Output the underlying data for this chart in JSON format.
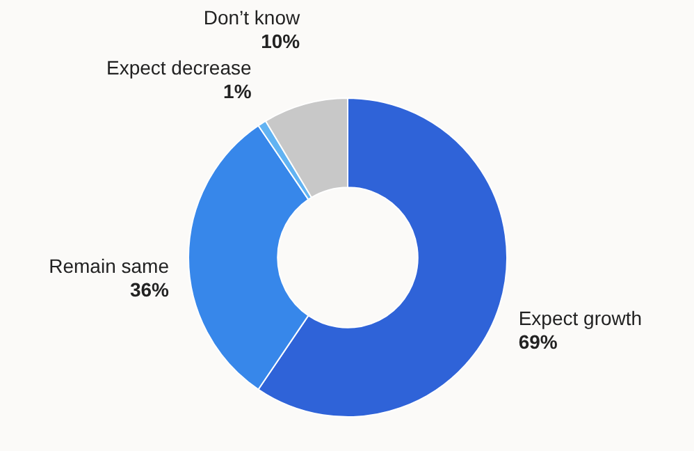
{
  "chart_data": {
    "type": "donut",
    "categories": [
      "Expect growth",
      "Remain same",
      "Expect decrease",
      "Don’t know"
    ],
    "values": [
      69,
      36,
      1,
      10
    ],
    "value_labels": [
      "69%",
      "36%",
      "1%",
      "10%"
    ],
    "colors": [
      "#2f63d8",
      "#3787ea",
      "#62b3f2",
      "#c8c8c8"
    ],
    "legend": false
  }
}
